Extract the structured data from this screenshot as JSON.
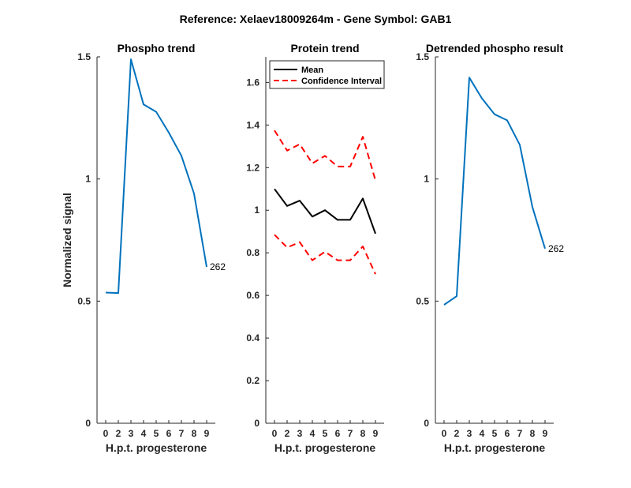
{
  "suptitle": "Reference:  Xelaev18009264m - Gene Symbol:  GAB1",
  "chart_data": [
    {
      "type": "line",
      "title": "Phospho trend",
      "xlabel": "H.p.t. progesterone",
      "ylabel": "Normalized signal",
      "categories": [
        "0",
        "2",
        "3",
        "4",
        "5",
        "6",
        "7",
        "8",
        "9"
      ],
      "ylim": [
        0,
        1.5
      ],
      "yticks": [
        "0",
        "0.5",
        "1",
        "1.5"
      ],
      "series": [
        {
          "values": [
            0.535,
            0.533,
            1.49,
            1.305,
            1.275,
            1.19,
            1.095,
            0.94,
            0.64
          ],
          "color": "#0072BD",
          "style": "solid"
        }
      ],
      "annotation": "262"
    },
    {
      "type": "line",
      "title": "Protein trend",
      "xlabel": "H.p.t. progesterone",
      "ylabel": "",
      "categories": [
        "0",
        "2",
        "3",
        "4",
        "5",
        "6",
        "7",
        "8",
        "9"
      ],
      "ylim": [
        0,
        1.72
      ],
      "yticks": [
        "0",
        "0.2",
        "0.4",
        "0.6",
        "0.8",
        "1",
        "1.2",
        "1.4",
        "1.6"
      ],
      "series": [
        {
          "name": "Mean",
          "values": [
            1.1,
            1.02,
            1.045,
            0.97,
            1.0,
            0.955,
            0.955,
            1.055,
            0.89
          ],
          "color": "#000000",
          "style": "solid"
        },
        {
          "name": "Confidence Interval",
          "values": [
            1.375,
            1.28,
            1.31,
            1.22,
            1.255,
            1.205,
            1.205,
            1.345,
            1.14
          ],
          "color": "#FF0000",
          "style": "dashed"
        },
        {
          "values": [
            0.885,
            0.825,
            0.85,
            0.765,
            0.805,
            0.765,
            0.765,
            0.83,
            0.7
          ],
          "color": "#FF0000",
          "style": "dashed"
        }
      ],
      "legend": "top-left"
    },
    {
      "type": "line",
      "title": "Detrended phospho result",
      "xlabel": "H.p.t. progesterone",
      "ylabel": "",
      "categories": [
        "0",
        "2",
        "3",
        "4",
        "5",
        "6",
        "7",
        "8",
        "9"
      ],
      "ylim": [
        0,
        1.5
      ],
      "yticks": [
        "0",
        "0.5",
        "1",
        "1.5"
      ],
      "series": [
        {
          "values": [
            0.485,
            0.52,
            1.415,
            1.33,
            1.265,
            1.24,
            1.14,
            0.885,
            0.715
          ],
          "color": "#0072BD",
          "style": "solid"
        }
      ],
      "annotation": "262"
    }
  ]
}
